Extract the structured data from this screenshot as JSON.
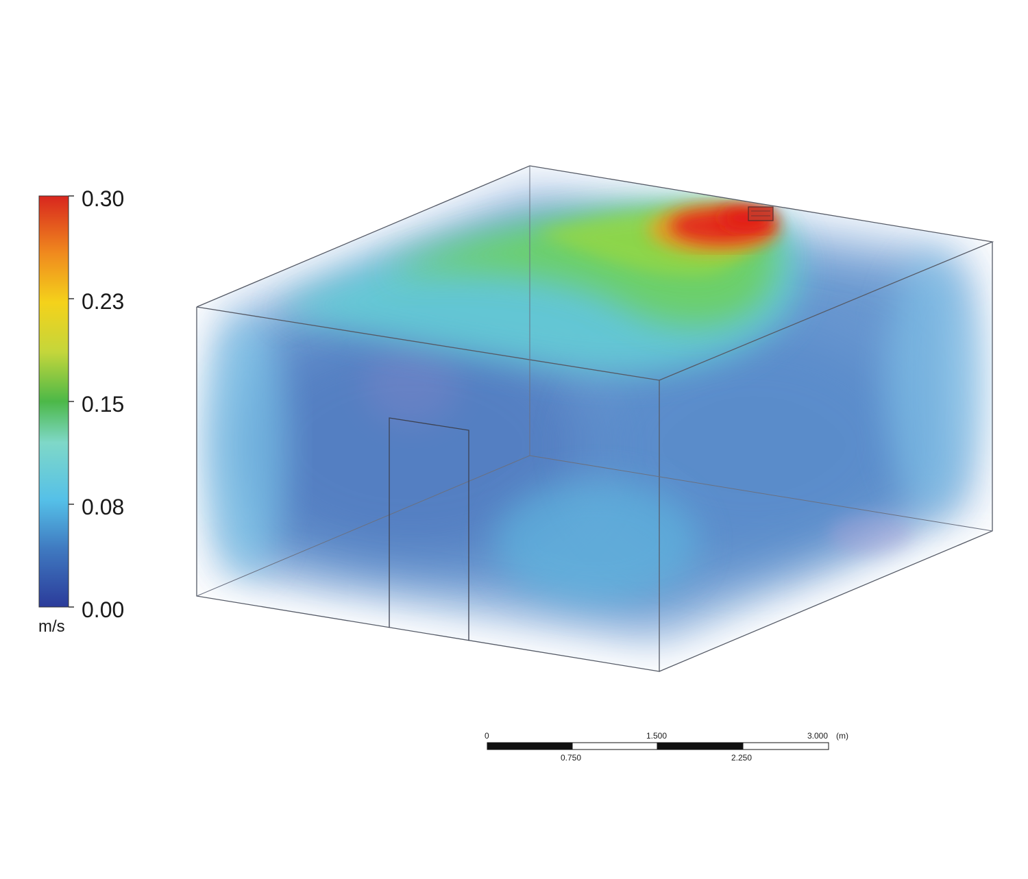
{
  "legend": {
    "quantity": "velocity",
    "unit": "m/s",
    "min": 0.0,
    "max": 0.3,
    "ticks": [
      "0.30",
      "0.23",
      "0.15",
      "0.08",
      "0.00"
    ],
    "gradient": [
      "#2b3b9a",
      "#3f79c0",
      "#55c0e8",
      "#7fd8c8",
      "#4cb848",
      "#c4d63b",
      "#f4d21b",
      "#f08a1e",
      "#d8261e"
    ]
  },
  "scale_bar": {
    "unit": "(m)",
    "top_labels": [
      "0",
      "1.500",
      "3.000"
    ],
    "bottom_labels": [
      "0.750",
      "2.250"
    ]
  },
  "room": {
    "inlet": "ceiling diffuser",
    "door": "door opening",
    "plume_colors": {
      "core": "#e3271c",
      "edge": "#f39a1f",
      "mid": "#6ed24f",
      "outer": "#63cfd6",
      "bulk": "#4f86c8"
    }
  }
}
